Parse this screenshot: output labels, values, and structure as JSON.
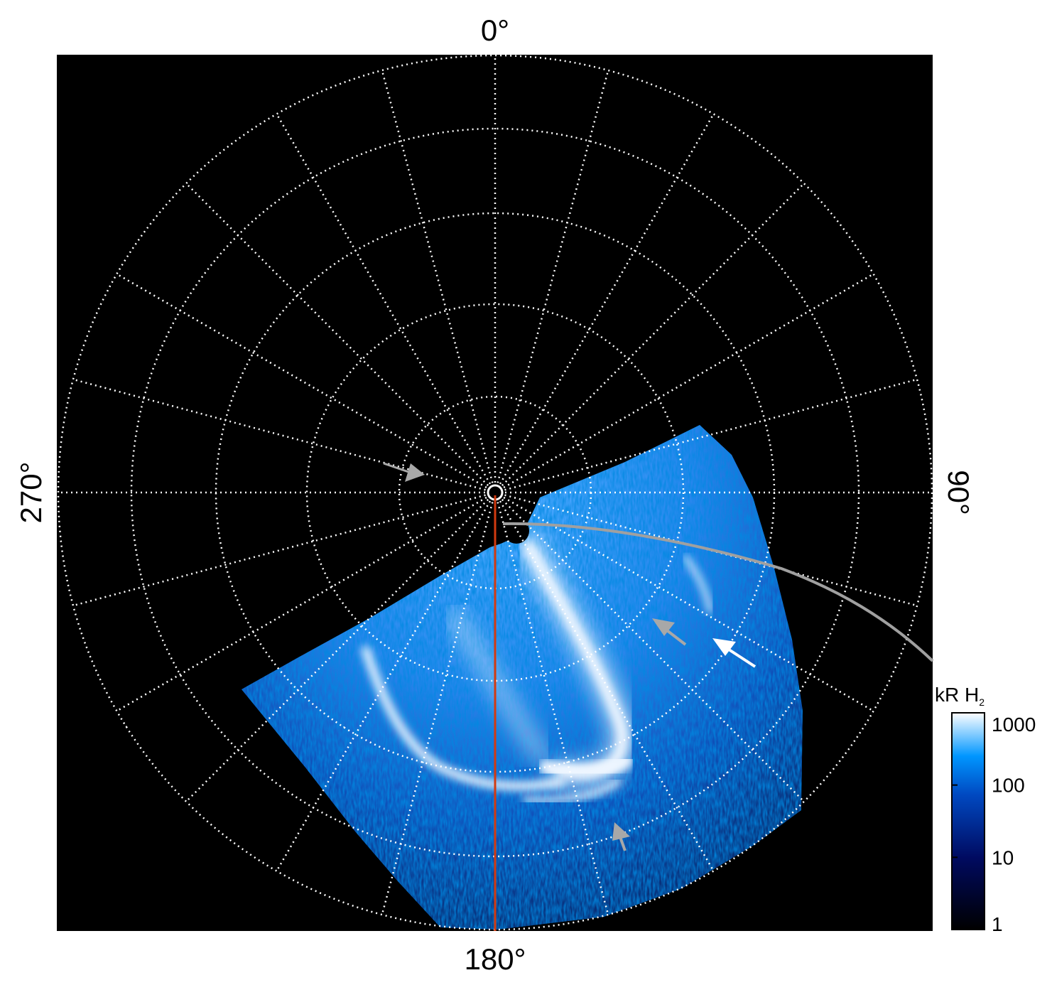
{
  "chart_data": {
    "type": "heatmap",
    "projection": "polar",
    "angle_labels": {
      "top": "0°",
      "right": "90°",
      "bottom": "180°",
      "left": "270°"
    },
    "angular_grid_step_deg": 15,
    "radial_circles": 5,
    "grid": true,
    "colorbar": {
      "title": "kR H",
      "title_subscript": "2",
      "scale": "log",
      "range": [
        1,
        1000
      ],
      "ticks": [
        "1",
        "10",
        "100",
        "1000"
      ],
      "colors": [
        "#000000",
        "#000a60",
        "#0048c0",
        "#0096ff",
        "#ffffff"
      ],
      "placement": "bottom-right"
    },
    "colors": {
      "background": "#000000",
      "grid": "#ffffff",
      "meridian_line": "#d23a10",
      "curve": "#a0a0a0",
      "arrow_gray": "#a8a8a8",
      "arrow_white": "#ffffff"
    }
  }
}
